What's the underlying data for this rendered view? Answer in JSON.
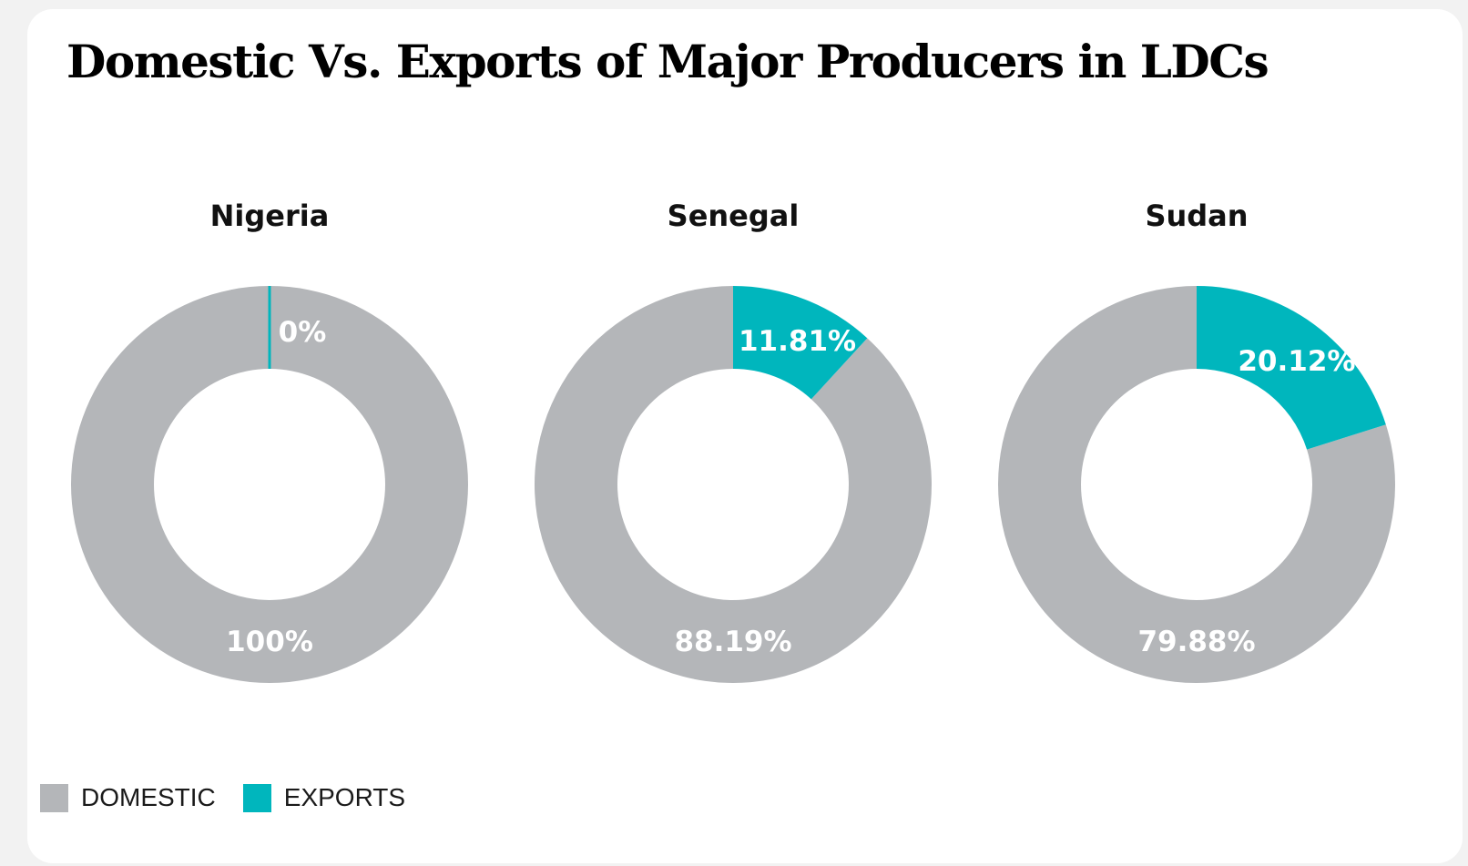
{
  "title": "Domestic Vs. Exports of Major Producers in LDCs",
  "colors": {
    "domestic": "#b4b6b9",
    "exports": "#00b6bd"
  },
  "legend": [
    {
      "label": "DOMESTIC",
      "color": "#b4b6b9"
    },
    {
      "label": "EXPORTS",
      "color": "#00b6bd"
    }
  ],
  "chart_data": [
    {
      "type": "pie",
      "title": "Nigeria",
      "categories": [
        "DOMESTIC",
        "EXPORTS"
      ],
      "values": [
        100,
        0
      ],
      "labels": [
        "100%",
        "0%"
      ]
    },
    {
      "type": "pie",
      "title": "Senegal",
      "categories": [
        "DOMESTIC",
        "EXPORTS"
      ],
      "values": [
        88.19,
        11.81
      ],
      "labels": [
        "88.19%",
        "11.81%"
      ]
    },
    {
      "type": "pie",
      "title": "Sudan",
      "categories": [
        "DOMESTIC",
        "EXPORTS"
      ],
      "values": [
        79.88,
        20.12
      ],
      "labels": [
        "79.88%",
        "20.12%"
      ]
    }
  ]
}
